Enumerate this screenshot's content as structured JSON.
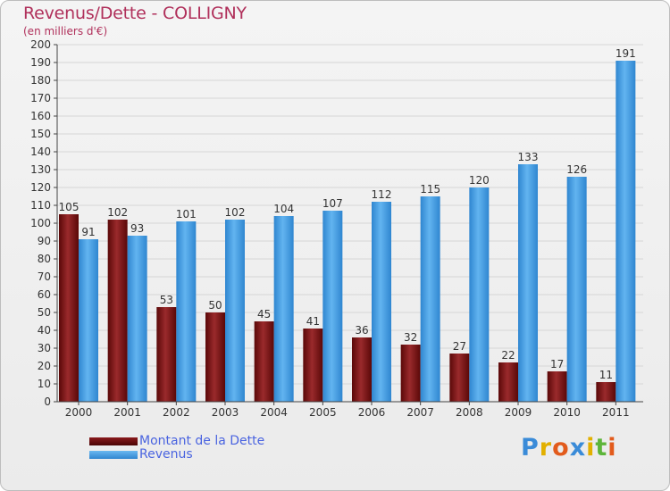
{
  "header": {
    "title": "Revenus/Dette - COLLIGNY",
    "subtitle": "(en milliers d'€)"
  },
  "legend": [
    {
      "label": "Montant de la Dette",
      "color": "#7a0f12"
    },
    {
      "label": "Revenus",
      "color": "#4aa3e8"
    }
  ],
  "logo": {
    "letters": [
      "P",
      "r",
      "o",
      "x",
      "i",
      "t",
      "i"
    ],
    "colors": [
      "#3a8bd8",
      "#e2b000",
      "#e25b1c",
      "#3a8bd8",
      "#e2b000",
      "#5db53a",
      "#e25b1c"
    ]
  },
  "chart_data": {
    "type": "bar",
    "categories": [
      "2000",
      "2001",
      "2002",
      "2003",
      "2004",
      "2005",
      "2006",
      "2007",
      "2008",
      "2009",
      "2010",
      "2011"
    ],
    "series": [
      {
        "name": "Montant de la Dette",
        "color": "#7a0f12",
        "values": [
          105,
          102,
          53,
          50,
          45,
          41,
          36,
          32,
          27,
          22,
          17,
          11
        ]
      },
      {
        "name": "Revenus",
        "color": "#4aa3e8",
        "values": [
          91,
          93,
          101,
          102,
          104,
          107,
          112,
          115,
          120,
          133,
          126,
          191
        ]
      }
    ],
    "ylim": [
      0,
      200
    ],
    "ytick_step": 10,
    "grid": true,
    "legend_position": "bottom-left"
  }
}
